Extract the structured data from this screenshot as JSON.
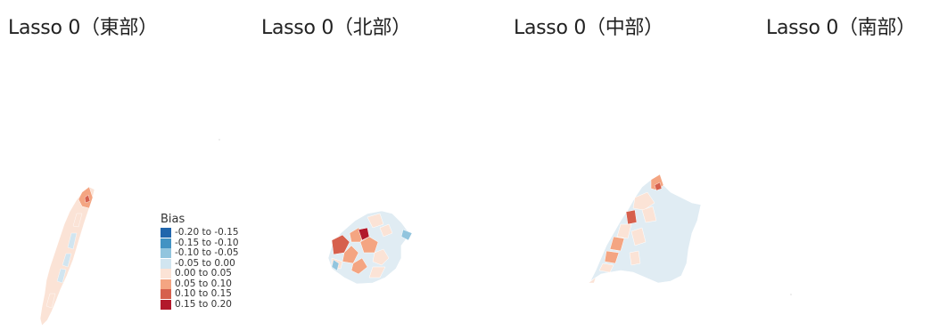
{
  "panels": [
    {
      "title": "Lasso 0（東部）"
    },
    {
      "title": "Lasso 0（北部）"
    },
    {
      "title": "Lasso 0（中部）"
    },
    {
      "title": "Lasso 0（南部）"
    }
  ],
  "legend": {
    "title": "Bias",
    "items": [
      {
        "label": "-0.20 to -0.15",
        "color": "#2166ac"
      },
      {
        "label": "-0.15 to -0.10",
        "color": "#4393c3"
      },
      {
        "label": "-0.10 to -0.05",
        "color": "#92c5de"
      },
      {
        "label": "-0.05 to 0.00",
        "color": "#d1e5f0"
      },
      {
        "label": "0.00 to 0.05",
        "color": "#fbe3d6"
      },
      {
        "label": "0.05 to 0.10",
        "color": "#f4a582"
      },
      {
        "label": "0.10 to 0.15",
        "color": "#d6604d"
      },
      {
        "label": "0.15 to 0.20",
        "color": "#b2182b"
      }
    ]
  }
}
